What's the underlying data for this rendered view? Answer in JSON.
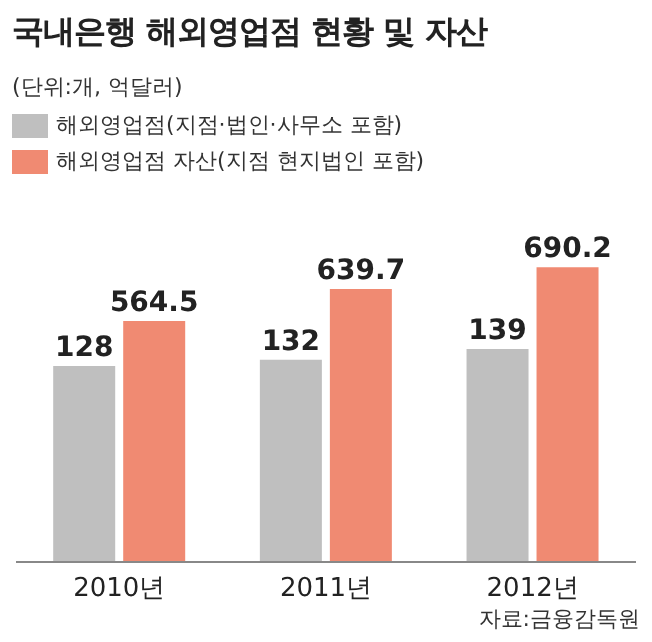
{
  "chart_data": {
    "type": "bar",
    "title": "국내은행 해외영업점 현황 및 자산",
    "subtitle": "(단위:개, 억달러)",
    "categories": [
      "2010년",
      "2011년",
      "2012년"
    ],
    "series": [
      {
        "name": "해외영업점(지점·법인·사무소 포함)",
        "color": "#bfbfbf",
        "values": [
          128,
          132,
          139
        ]
      },
      {
        "name": "해외영업점 자산(지점 현지법인 포함)",
        "color": "#f08a72",
        "values": [
          564.5,
          639.7,
          690.2
        ],
        "axis": "y2"
      }
    ],
    "tick_labels": false,
    "data_labels": true,
    "legend": "top left",
    "annotations": [
      "자료:금융감독원"
    ]
  }
}
